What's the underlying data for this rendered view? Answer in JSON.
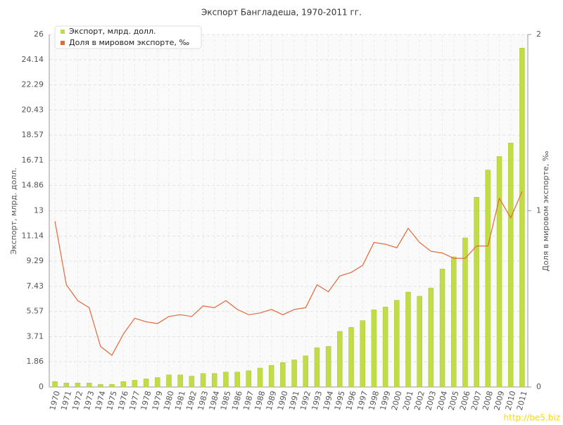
{
  "chart_data": {
    "type": "bar-line",
    "title": "Экспорт Бангладеша, 1970-2011 гг.",
    "y_label": "Экспорт, млрд. долл.",
    "y2_label": "Доля в мировом экспорте, ‰",
    "watermark": "http://be5.biz",
    "categories": [
      "1970",
      "1971",
      "1972",
      "1973",
      "1974",
      "1975",
      "1976",
      "1977",
      "1978",
      "1979",
      "1980",
      "1981",
      "1982",
      "1983",
      "1984",
      "1985",
      "1986",
      "1987",
      "1988",
      "1989",
      "1990",
      "1991",
      "1992",
      "1993",
      "1994",
      "1995",
      "1996",
      "1997",
      "1998",
      "1999",
      "2000",
      "2001",
      "2002",
      "2003",
      "2004",
      "2005",
      "2006",
      "2007",
      "2008",
      "2009",
      "2010",
      "2011"
    ],
    "series": [
      {
        "name": "Экспорт, млрд. долл.",
        "color": "#c2dc48",
        "type": "bar",
        "values": [
          0.4,
          0.3,
          0.3,
          0.3,
          0.2,
          0.2,
          0.4,
          0.5,
          0.6,
          0.7,
          0.9,
          0.9,
          0.8,
          1.0,
          1.0,
          1.1,
          1.1,
          1.2,
          1.4,
          1.6,
          1.8,
          2.0,
          2.3,
          2.9,
          3.0,
          4.1,
          4.4,
          4.9,
          5.7,
          5.9,
          6.4,
          7.0,
          6.7,
          7.3,
          8.7,
          9.6,
          11.0,
          14.0,
          16.0,
          17.0,
          18.0,
          25.0
        ]
      },
      {
        "name": "Доля в мировом экспорте, ‰",
        "color": "#e2693a",
        "type": "line",
        "axis": "y2",
        "values": [
          0.94,
          0.58,
          0.49,
          0.45,
          0.23,
          0.18,
          0.3,
          0.39,
          0.37,
          0.36,
          0.4,
          0.41,
          0.4,
          0.46,
          0.45,
          0.49,
          0.44,
          0.41,
          0.42,
          0.44,
          0.41,
          0.44,
          0.45,
          0.58,
          0.54,
          0.63,
          0.65,
          0.69,
          0.82,
          0.81,
          0.79,
          0.9,
          0.82,
          0.77,
          0.76,
          0.73,
          0.73,
          0.8,
          0.8,
          1.07,
          0.96,
          1.11
        ]
      }
    ],
    "ylim": [
      0,
      26
    ],
    "yticks": [
      0,
      1.86,
      3.71,
      5.57,
      7.43,
      9.29,
      11.14,
      13,
      14.86,
      16.71,
      18.57,
      20.43,
      22.29,
      24.14,
      26
    ],
    "y2lim": [
      0,
      2
    ],
    "y2ticks": [
      0,
      1,
      2
    ],
    "grid": true,
    "legend": "top-left"
  }
}
